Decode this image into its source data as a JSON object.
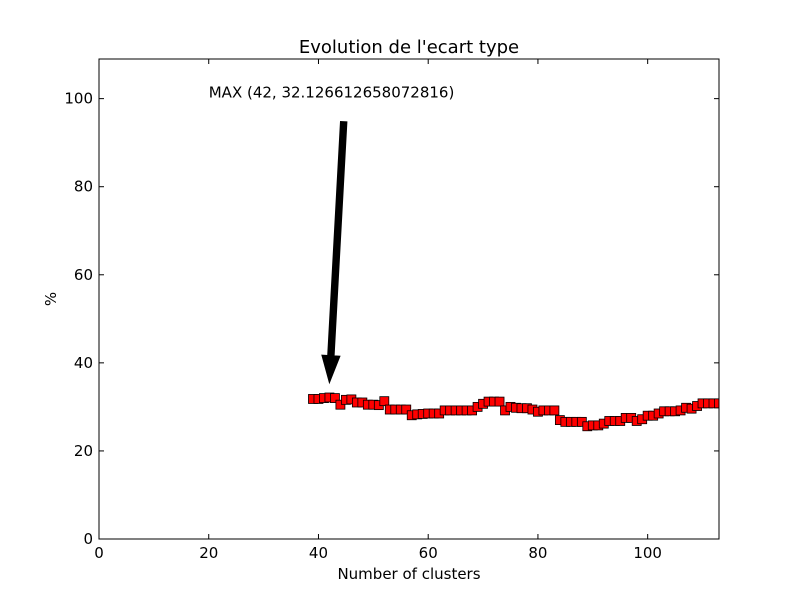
{
  "chart_data": {
    "type": "scatter",
    "title": "Evolution de l'ecart type",
    "xlabel": "Number of clusters",
    "ylabel": "%",
    "xlim": [
      0,
      113
    ],
    "ylim": [
      0,
      109
    ],
    "xticks": [
      0,
      20,
      40,
      60,
      80,
      100
    ],
    "yticks": [
      0,
      20,
      40,
      60,
      80,
      100
    ],
    "grid": false,
    "marker": "square",
    "marker_color": "#ff0000",
    "marker_edge": "#000000",
    "series": [
      {
        "x": [
          39,
          40,
          41,
          42,
          43,
          44,
          45,
          46,
          47,
          48,
          49,
          50,
          51,
          52,
          53,
          54,
          55,
          56,
          57,
          58,
          59,
          60,
          61,
          62,
          63,
          64,
          65,
          66,
          67,
          68,
          69,
          70,
          71,
          72,
          73,
          74,
          75,
          76,
          77,
          78,
          79,
          80,
          81,
          82,
          83,
          84,
          85,
          86,
          87,
          88,
          89,
          90,
          91,
          92,
          93,
          94,
          95,
          96,
          97,
          98,
          99,
          100,
          101,
          102,
          103,
          104,
          105,
          106,
          107,
          108,
          109,
          110,
          111,
          112,
          113
        ],
        "y": [
          31.8,
          31.8,
          32.0,
          32.13,
          32.0,
          30.5,
          31.6,
          31.7,
          31.0,
          31.0,
          30.5,
          30.5,
          30.4,
          31.3,
          29.4,
          29.4,
          29.4,
          29.4,
          28.1,
          28.3,
          28.4,
          28.5,
          28.5,
          28.5,
          29.2,
          29.2,
          29.2,
          29.2,
          29.2,
          29.2,
          30.0,
          30.7,
          31.2,
          31.2,
          31.2,
          29.2,
          30.0,
          29.8,
          29.7,
          29.7,
          29.4,
          28.9,
          29.2,
          29.2,
          29.2,
          27.0,
          26.6,
          26.6,
          26.6,
          26.6,
          25.6,
          25.8,
          25.8,
          26.2,
          26.8,
          26.8,
          26.8,
          27.5,
          27.5,
          26.8,
          27.2,
          28.0,
          28.0,
          28.5,
          29.0,
          29.0,
          29.0,
          29.2,
          29.8,
          29.6,
          30.2,
          30.8,
          30.8,
          30.8,
          30.8
        ]
      }
    ],
    "annotation": {
      "text": "MAX (42, 32.126612658072816)",
      "xy": [
        42,
        35.5
      ],
      "xytext": [
        20,
        100
      ]
    }
  }
}
